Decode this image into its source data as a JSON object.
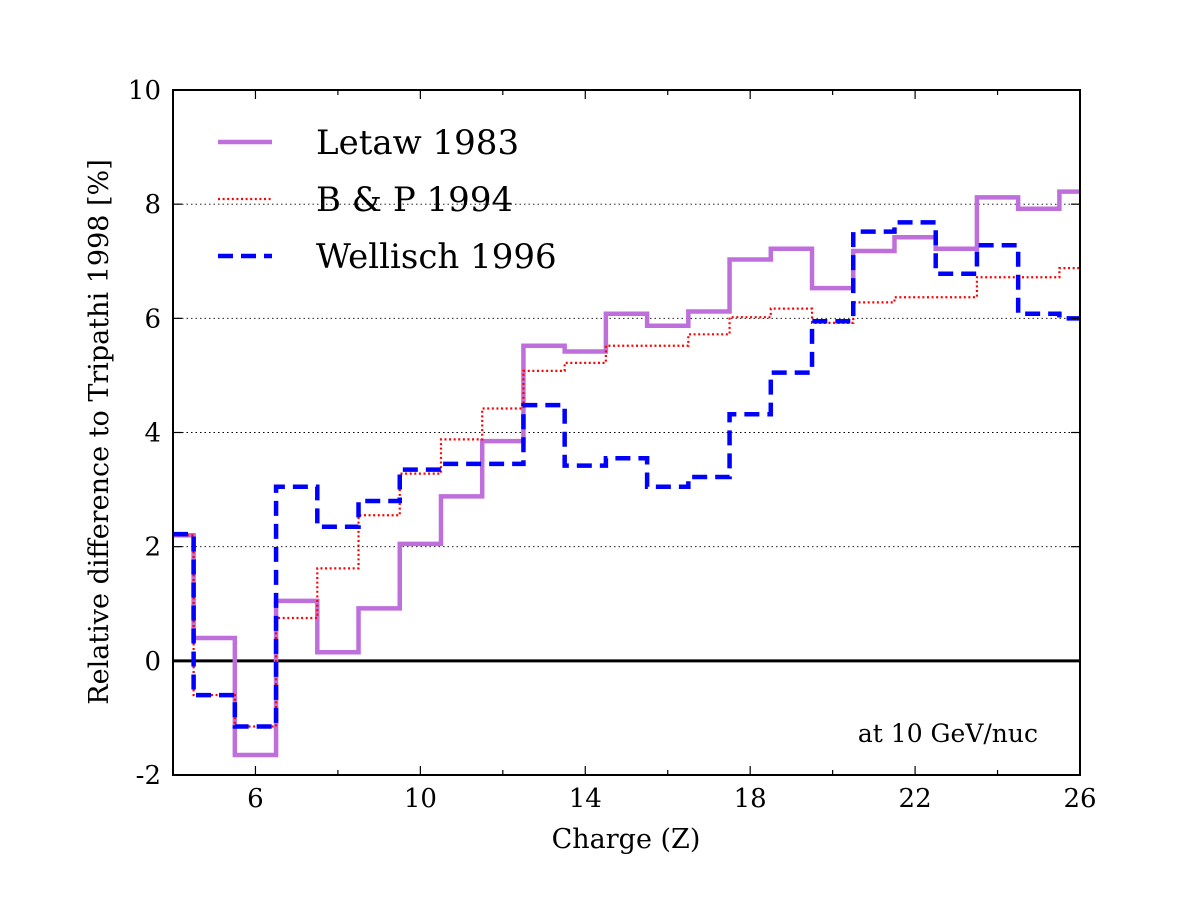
{
  "chart_data": {
    "type": "line",
    "step": true,
    "title": "",
    "xlabel": "Charge (Z)",
    "ylabel": "Relative difference to Tripathi 1998 [%]",
    "xlim": [
      4,
      26
    ],
    "ylim": [
      -2,
      10
    ],
    "xticks": [
      6,
      10,
      14,
      18,
      22,
      26
    ],
    "yticks": [
      -2,
      0,
      2,
      4,
      6,
      8,
      10
    ],
    "xtick_labels": [
      "6",
      "10",
      "14",
      "18",
      "22",
      "26"
    ],
    "ytick_labels": [
      "-2",
      "0",
      "2",
      "4",
      "6",
      "8",
      "10"
    ],
    "grid": "horizontal dotted",
    "reference_line": 0,
    "annotation": "at 10 GeV/nuc",
    "legend_position": "top-left",
    "x": [
      4,
      5,
      6,
      7,
      8,
      9,
      10,
      11,
      12,
      13,
      14,
      15,
      16,
      17,
      18,
      19,
      20,
      21,
      22,
      23,
      24,
      25,
      26
    ],
    "series": [
      {
        "name": "Letaw 1983",
        "color": "#bf6fdc",
        "style": "solid",
        "values": [
          2.2,
          0.4,
          -1.65,
          1.05,
          0.15,
          0.92,
          2.05,
          2.88,
          3.85,
          5.52,
          5.42,
          6.08,
          5.87,
          6.12,
          7.03,
          7.22,
          6.53,
          7.18,
          7.42,
          7.22,
          8.12,
          7.92,
          8.22
        ]
      },
      {
        "name": "B & P 1994",
        "color": "#ff0000",
        "style": "dotted",
        "values": [
          2.2,
          -0.6,
          -1.15,
          0.75,
          1.62,
          2.55,
          3.28,
          3.88,
          4.42,
          5.08,
          5.22,
          5.52,
          5.52,
          5.72,
          6.02,
          6.17,
          5.92,
          6.28,
          6.37,
          6.37,
          6.72,
          6.72,
          6.88
        ]
      },
      {
        "name": "Wellisch 1996",
        "color": "#0000ff",
        "style": "dashed",
        "values": [
          2.22,
          -0.6,
          -1.15,
          3.05,
          2.35,
          2.8,
          3.35,
          3.45,
          3.45,
          4.48,
          3.42,
          3.55,
          3.05,
          3.22,
          4.32,
          5.05,
          5.95,
          7.52,
          7.68,
          6.78,
          7.28,
          6.08,
          6.0
        ]
      }
    ]
  }
}
